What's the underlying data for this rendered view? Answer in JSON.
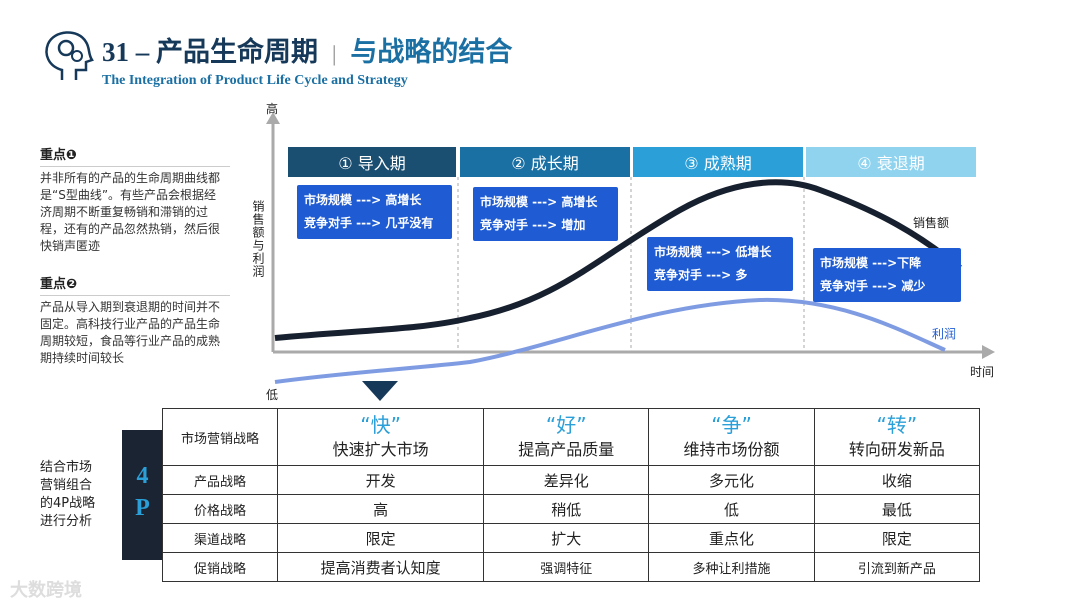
{
  "header": {
    "title": "31 – 产品生命周期",
    "separator": "|",
    "subtitle": "与战略的结合",
    "english": "The Integration of Product Life Cycle and Strategy"
  },
  "sidebar": [
    {
      "label": "重点❶",
      "text": "并非所有的产品的生命周期曲线都是“S型曲线”。有些产品会根据经济周期不断重复畅销和滞销的过程，还有的产品忽然热销，然后很快销声匿迹"
    },
    {
      "label": "重点❷",
      "text": "产品从导入期到衰退期的时间并不固定。高科技行业产品的产品生命周期较短，食品等行业产品的成熟期持续时间较长"
    }
  ],
  "diagram": {
    "y_high": "高",
    "y_low": "低",
    "y_label": "销售额与利润",
    "x_label": "时间",
    "sales_label": "销售额",
    "profit_label": "利润",
    "stages": [
      {
        "name": "① 导入期",
        "notes": [
          "市场规模 ---> 高增长",
          "竞争对手 ---> 几乎没有"
        ]
      },
      {
        "name": "② 成长期",
        "notes": [
          "市场规模 ---> 高增长",
          "竞争对手 ---> 增加"
        ]
      },
      {
        "name": "③ 成熟期",
        "notes": [
          "市场规模 ---> 低增长",
          "竞争对手 ---> 多"
        ]
      },
      {
        "name": "④ 衰退期",
        "notes": [
          "市场规模 --->下降",
          "竞争对手 ---> 减少"
        ]
      }
    ]
  },
  "table": {
    "side_label": [
      "结合市场",
      "营销组合",
      "的4P战略",
      "进行分析"
    ],
    "badge": "4P",
    "header": {
      "label": "市场营销战略",
      "columns": [
        {
          "key": "“快”",
          "text": "快速扩大市场"
        },
        {
          "key": "“好”",
          "text": "提高产品质量"
        },
        {
          "key": "“争”",
          "text": "维持市场份额"
        },
        {
          "key": "“转”",
          "text": "转向研发新品"
        }
      ]
    },
    "rows": [
      [
        "产品战略",
        "开发",
        "差异化",
        "多元化",
        "收缩"
      ],
      [
        "价格战略",
        "高",
        "稍低",
        "低",
        "最低"
      ],
      [
        "渠道战略",
        "限定",
        "扩大",
        "重点化",
        "限定"
      ],
      [
        "促销战略",
        "提高消费者认知度",
        "强调特征",
        "多种让利措施",
        "引流到新产品"
      ]
    ]
  },
  "footer": {
    "watermark": "大数跨境"
  }
}
